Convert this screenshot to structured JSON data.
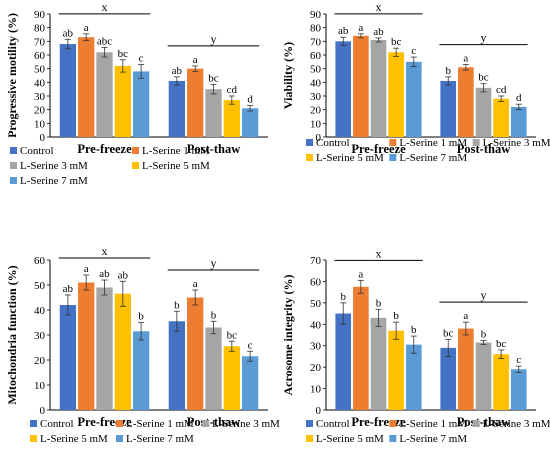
{
  "chart_data": [
    {
      "type": "bar",
      "ylabel": "Progressive motility (%)",
      "ylim": [
        0,
        90
      ],
      "ystep": 10,
      "categories": [
        "Pre-freeze",
        "Post-thaw"
      ],
      "group_letters": [
        "x",
        "y"
      ],
      "series": [
        {
          "name": "Control",
          "values": [
            68,
            41
          ],
          "errors": [
            3.5,
            3
          ],
          "letters": [
            "ab",
            "ab"
          ]
        },
        {
          "name": "L-Serine 1 mM",
          "values": [
            73,
            50
          ],
          "errors": [
            2.5,
            2
          ],
          "letters": [
            "a",
            "a"
          ]
        },
        {
          "name": "L-Serine 3 mM",
          "values": [
            62,
            35
          ],
          "errors": [
            3.5,
            3.5
          ],
          "letters": [
            "abc",
            "bc"
          ]
        },
        {
          "name": "L-Serine 5 mM",
          "values": [
            52,
            27
          ],
          "errors": [
            4.5,
            3
          ],
          "letters": [
            "bc",
            "cd"
          ]
        },
        {
          "name": "L-Serine 7 mM",
          "values": [
            48,
            21
          ],
          "errors": [
            5,
            2
          ],
          "letters": [
            "c",
            "d"
          ]
        }
      ],
      "legend_position": "bottom"
    },
    {
      "type": "bar",
      "ylabel": "Viability (%)",
      "ylim": [
        0,
        90
      ],
      "ystep": 10,
      "categories": [
        "Pre-freeze",
        "Post-thaw"
      ],
      "group_letters": [
        "x",
        "y"
      ],
      "series": [
        {
          "name": "Control",
          "values": [
            70,
            41
          ],
          "errors": [
            3,
            3
          ],
          "letters": [
            "ab",
            "b"
          ]
        },
        {
          "name": "L-Serine 1 mM",
          "values": [
            74,
            51
          ],
          "errors": [
            1.5,
            2
          ],
          "letters": [
            "a",
            "a"
          ]
        },
        {
          "name": "L-Serine 3 mM",
          "values": [
            71,
            36
          ],
          "errors": [
            1.5,
            3
          ],
          "letters": [
            "ab",
            "bc"
          ]
        },
        {
          "name": "L-Serine 5 mM",
          "values": [
            62,
            28
          ],
          "errors": [
            3,
            2
          ],
          "letters": [
            "bc",
            "cd"
          ]
        },
        {
          "name": "L-Serine 7 mM",
          "values": [
            55,
            22
          ],
          "errors": [
            3.5,
            2
          ],
          "letters": [
            "c",
            "d"
          ]
        }
      ],
      "legend_position": "bottom"
    },
    {
      "type": "bar",
      "ylabel": "Mitochondria function (%)",
      "ylim": [
        0,
        60
      ],
      "ystep": 10,
      "categories": [
        "Pre-freeze",
        "Post-thaw"
      ],
      "group_letters": [
        "x",
        "y"
      ],
      "series": [
        {
          "name": "Control",
          "values": [
            42,
            35.5
          ],
          "errors": [
            4,
            4
          ],
          "letters": [
            "ab",
            "b"
          ]
        },
        {
          "name": "L-Serine 1 mM",
          "values": [
            51,
            45
          ],
          "errors": [
            3,
            3
          ],
          "letters": [
            "a",
            "a"
          ]
        },
        {
          "name": "L-Serine 3 mM",
          "values": [
            49,
            33
          ],
          "errors": [
            3,
            2.5
          ],
          "letters": [
            "ab",
            "b"
          ]
        },
        {
          "name": "L-Serine 5 mM",
          "values": [
            46.5,
            25.5
          ],
          "errors": [
            5,
            2
          ],
          "letters": [
            "ab",
            "bc"
          ]
        },
        {
          "name": "L-Serine 7 mM",
          "values": [
            31.5,
            21.5
          ],
          "errors": [
            3.5,
            2
          ],
          "letters": [
            "b",
            "c"
          ]
        }
      ],
      "legend_position": "bottom"
    },
    {
      "type": "bar",
      "ylabel": "Acrosome integrity (%)",
      "ylim": [
        0,
        70
      ],
      "ystep": 10,
      "categories": [
        "Pre-freeze",
        "Post-thaw"
      ],
      "group_letters": [
        "x",
        "y"
      ],
      "series": [
        {
          "name": "Control",
          "values": [
            45,
            29
          ],
          "errors": [
            5,
            4
          ],
          "letters": [
            "b",
            "bc"
          ]
        },
        {
          "name": "L-Serine 1 mM",
          "values": [
            57.5,
            38
          ],
          "errors": [
            3,
            3
          ],
          "letters": [
            "a",
            "a"
          ]
        },
        {
          "name": "L-Serine 3 mM",
          "values": [
            43,
            31.5
          ],
          "errors": [
            4,
            1
          ],
          "letters": [
            "b",
            "b"
          ]
        },
        {
          "name": "L-Serine 5 mM",
          "values": [
            37,
            26
          ],
          "errors": [
            4,
            2
          ],
          "letters": [
            "b",
            "bc"
          ]
        },
        {
          "name": "L-Serine 7 mM",
          "values": [
            30.5,
            19
          ],
          "errors": [
            4,
            1.5
          ],
          "letters": [
            "b",
            "c"
          ]
        }
      ],
      "legend_position": "bottom"
    }
  ],
  "colors": {
    "Control": "#4472C4",
    "L-Serine 1 mM": "#ED7D31",
    "L-Serine 3 mM": "#A5A5A5",
    "L-Serine 5 mM": "#FFC000",
    "L-Serine 7 mM": "#5B9BD5"
  }
}
